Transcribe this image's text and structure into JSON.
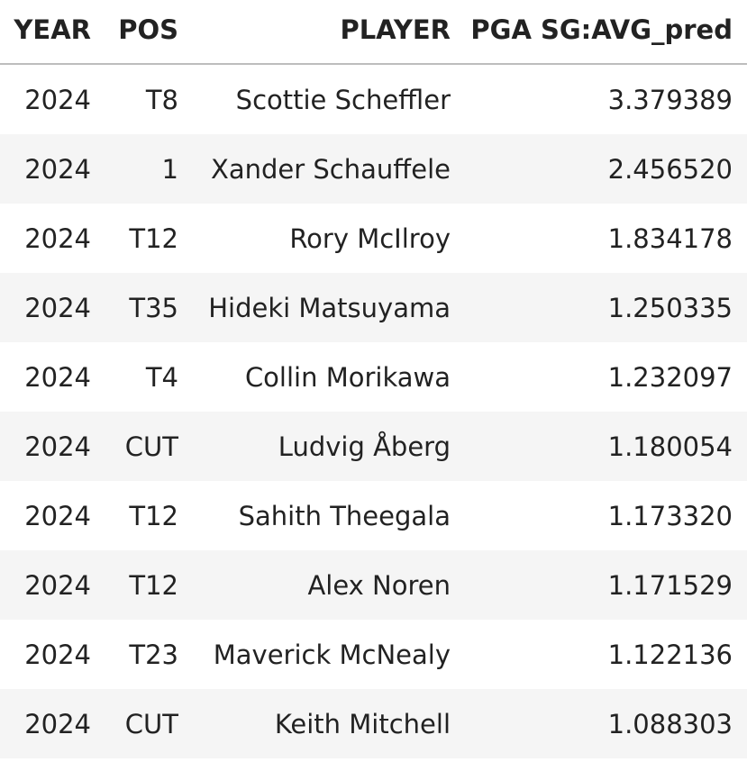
{
  "table": {
    "columns": [
      "YEAR",
      "POS",
      "PLAYER",
      "PGA SG:AVG_pred"
    ],
    "rows": [
      [
        "2024",
        "T8",
        "Scottie Scheffler",
        "3.379389"
      ],
      [
        "2024",
        "1",
        "Xander Schauffele",
        "2.456520"
      ],
      [
        "2024",
        "T12",
        "Rory McIlroy",
        "1.834178"
      ],
      [
        "2024",
        "T35",
        "Hideki Matsuyama",
        "1.250335"
      ],
      [
        "2024",
        "T4",
        "Collin Morikawa",
        "1.232097"
      ],
      [
        "2024",
        "CUT",
        "Ludvig Åberg",
        "1.180054"
      ],
      [
        "2024",
        "T12",
        "Sahith Theegala",
        "1.173320"
      ],
      [
        "2024",
        "T12",
        "Alex Noren",
        "1.171529"
      ],
      [
        "2024",
        "T23",
        "Maverick McNealy",
        "1.122136"
      ],
      [
        "2024",
        "CUT",
        "Keith Mitchell",
        "1.088303"
      ]
    ]
  }
}
